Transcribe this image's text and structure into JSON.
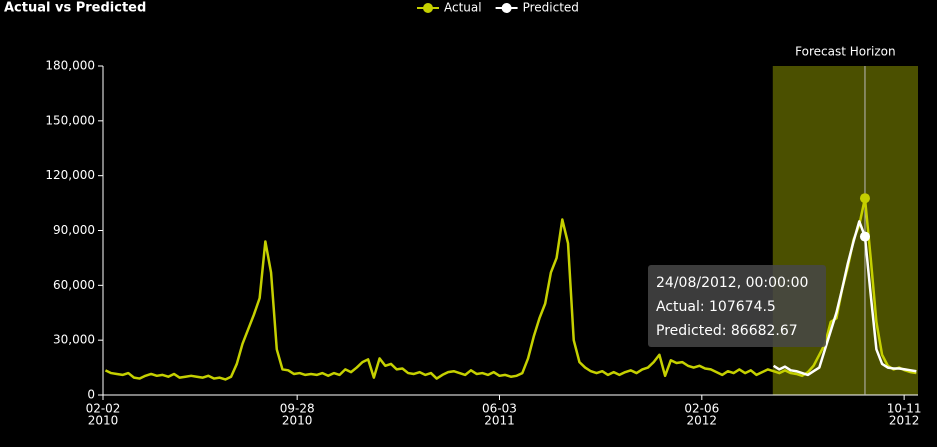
{
  "chart_data": {
    "type": "line",
    "title": "Actual vs Predicted",
    "x": [
      "2010-02-05",
      "2010-02-12",
      "2010-02-19",
      "2010-02-26",
      "2010-03-05",
      "2010-03-12",
      "2010-03-19",
      "2010-03-26",
      "2010-04-02",
      "2010-04-09",
      "2010-04-16",
      "2010-04-23",
      "2010-04-30",
      "2010-05-07",
      "2010-05-14",
      "2010-05-21",
      "2010-05-28",
      "2010-06-04",
      "2010-06-11",
      "2010-06-18",
      "2010-06-25",
      "2010-07-02",
      "2010-07-09",
      "2010-07-16",
      "2010-07-23",
      "2010-07-30",
      "2010-08-06",
      "2010-08-13",
      "2010-08-20",
      "2010-08-27",
      "2010-09-03",
      "2010-09-10",
      "2010-09-17",
      "2010-09-24",
      "2010-10-01",
      "2010-10-08",
      "2010-10-15",
      "2010-10-22",
      "2010-10-29",
      "2010-11-05",
      "2010-11-12",
      "2010-11-19",
      "2010-11-26",
      "2010-12-03",
      "2010-12-10",
      "2010-12-17",
      "2010-12-24",
      "2010-12-31",
      "2011-01-07",
      "2011-01-14",
      "2011-01-21",
      "2011-01-28",
      "2011-02-04",
      "2011-02-11",
      "2011-02-18",
      "2011-02-25",
      "2011-03-04",
      "2011-03-11",
      "2011-03-18",
      "2011-03-25",
      "2011-04-01",
      "2011-04-08",
      "2011-04-15",
      "2011-04-22",
      "2011-04-29",
      "2011-05-06",
      "2011-05-13",
      "2011-05-20",
      "2011-05-27",
      "2011-06-03",
      "2011-06-10",
      "2011-06-17",
      "2011-06-24",
      "2011-07-01",
      "2011-07-08",
      "2011-07-15",
      "2011-07-22",
      "2011-07-29",
      "2011-08-05",
      "2011-08-12",
      "2011-08-19",
      "2011-08-26",
      "2011-09-02",
      "2011-09-09",
      "2011-09-16",
      "2011-09-23",
      "2011-09-30",
      "2011-10-07",
      "2011-10-14",
      "2011-10-21",
      "2011-10-28",
      "2011-11-04",
      "2011-11-11",
      "2011-11-18",
      "2011-11-25",
      "2011-12-02",
      "2011-12-09",
      "2011-12-16",
      "2011-12-23",
      "2011-12-30",
      "2012-01-06",
      "2012-01-13",
      "2012-01-20",
      "2012-01-27",
      "2012-02-03",
      "2012-02-10",
      "2012-02-17",
      "2012-02-24",
      "2012-03-02",
      "2012-03-09",
      "2012-03-16",
      "2012-03-23",
      "2012-03-30",
      "2012-04-06",
      "2012-04-13",
      "2012-04-20",
      "2012-04-27",
      "2012-05-04",
      "2012-05-11",
      "2012-05-18",
      "2012-05-25",
      "2012-06-01",
      "2012-06-08",
      "2012-06-15",
      "2012-06-22",
      "2012-06-29",
      "2012-07-06",
      "2012-07-13",
      "2012-07-20",
      "2012-07-27",
      "2012-08-03",
      "2012-08-10",
      "2012-08-17",
      "2012-08-24",
      "2012-08-31",
      "2012-09-07",
      "2012-09-14",
      "2012-09-21",
      "2012-09-28",
      "2012-10-05",
      "2012-10-12",
      "2012-10-19",
      "2012-10-26"
    ],
    "series": [
      {
        "name": "Actual",
        "color": "#c5d000",
        "values": [
          13500,
          12000,
          11500,
          11000,
          12000,
          9500,
          9000,
          10500,
          11500,
          10500,
          11000,
          10000,
          11500,
          9500,
          10000,
          10500,
          10000,
          9500,
          10500,
          9000,
          9500,
          8500,
          10000,
          17000,
          28000,
          36000,
          44000,
          53000,
          84000,
          67000,
          25000,
          14000,
          13500,
          11500,
          12000,
          11000,
          11500,
          11000,
          12000,
          10500,
          12000,
          11000,
          14000,
          12500,
          15000,
          18000,
          19500,
          9500,
          20000,
          16000,
          17000,
          14000,
          14500,
          12000,
          11500,
          12500,
          11000,
          12000,
          9000,
          11000,
          12500,
          13000,
          12000,
          11000,
          13500,
          11500,
          12000,
          11000,
          12500,
          10500,
          11000,
          10000,
          10500,
          12000,
          20000,
          32000,
          42000,
          50000,
          67000,
          75000,
          96000,
          83000,
          30000,
          18000,
          15000,
          13000,
          12000,
          13000,
          11000,
          12500,
          11000,
          12500,
          13500,
          12000,
          14000,
          15000,
          18000,
          22000,
          10500,
          19000,
          17500,
          18000,
          16000,
          15000,
          16000,
          14500,
          14000,
          12500,
          11000,
          13000,
          12000,
          14000,
          12000,
          13500,
          11000,
          12500,
          14000,
          13000,
          12000,
          13500,
          12000,
          11500,
          10500,
          12500,
          16000,
          22000,
          28000,
          40000,
          42000,
          58000,
          70000,
          85000,
          93000,
          107674.5,
          75000,
          40000,
          22000,
          16000,
          14000,
          15000,
          13500,
          12500,
          12000
        ]
      },
      {
        "name": "Predicted",
        "color": "#ffffff",
        "values": [
          null,
          null,
          null,
          null,
          null,
          null,
          null,
          null,
          null,
          null,
          null,
          null,
          null,
          null,
          null,
          null,
          null,
          null,
          null,
          null,
          null,
          null,
          null,
          null,
          null,
          null,
          null,
          null,
          null,
          null,
          null,
          null,
          null,
          null,
          null,
          null,
          null,
          null,
          null,
          null,
          null,
          null,
          null,
          null,
          null,
          null,
          null,
          null,
          null,
          null,
          null,
          null,
          null,
          null,
          null,
          null,
          null,
          null,
          null,
          null,
          null,
          null,
          null,
          null,
          null,
          null,
          null,
          null,
          null,
          null,
          null,
          null,
          null,
          null,
          null,
          null,
          null,
          null,
          null,
          null,
          null,
          null,
          null,
          null,
          null,
          null,
          null,
          null,
          null,
          null,
          null,
          null,
          null,
          null,
          null,
          null,
          null,
          null,
          null,
          null,
          null,
          null,
          null,
          null,
          null,
          null,
          null,
          null,
          null,
          null,
          null,
          null,
          null,
          null,
          null,
          null,
          null,
          16000,
          14000,
          15500,
          13500,
          13000,
          12000,
          11000,
          13000,
          15000,
          25000,
          35000,
          45000,
          58000,
          72000,
          84000,
          95000,
          86682.67,
          55000,
          25000,
          17000,
          15000,
          14500,
          14500,
          14000,
          13500,
          13000
        ]
      }
    ],
    "xlim": [
      "2010-02-02",
      "2012-10-28"
    ],
    "xticks": [
      {
        "value": "2010-02-02",
        "label": [
          "02-02",
          "2010"
        ]
      },
      {
        "value": "2010-09-28",
        "label": [
          "09-28",
          "2010"
        ]
      },
      {
        "value": "2011-06-03",
        "label": [
          "06-03",
          "2011"
        ]
      },
      {
        "value": "2012-02-06",
        "label": [
          "02-06",
          "2012"
        ]
      },
      {
        "value": "2012-10-11",
        "label": [
          "10-11",
          "2012"
        ]
      }
    ],
    "ylim": [
      0,
      180000
    ],
    "yticks": [
      0,
      {
        "value": 30000,
        "label": "30,000"
      },
      {
        "value": 60000,
        "label": "60,000"
      },
      {
        "value": 90000,
        "label": "90,000"
      },
      {
        "value": 120000,
        "label": "120,000"
      },
      {
        "value": 150000,
        "label": "150,000"
      },
      {
        "value": 180000,
        "label": "180,000"
      }
    ],
    "grid": false,
    "forecast": {
      "label": "Forecast Horizon",
      "range": [
        "2012-05-03",
        "2012-10-28"
      ],
      "color": "#4b5000"
    },
    "tooltip": {
      "x": "2012-08-24",
      "title": "24/08/2012, 00:00:00",
      "lines": [
        "Actual: 107674.5",
        "Predicted: 86682.67"
      ]
    }
  }
}
